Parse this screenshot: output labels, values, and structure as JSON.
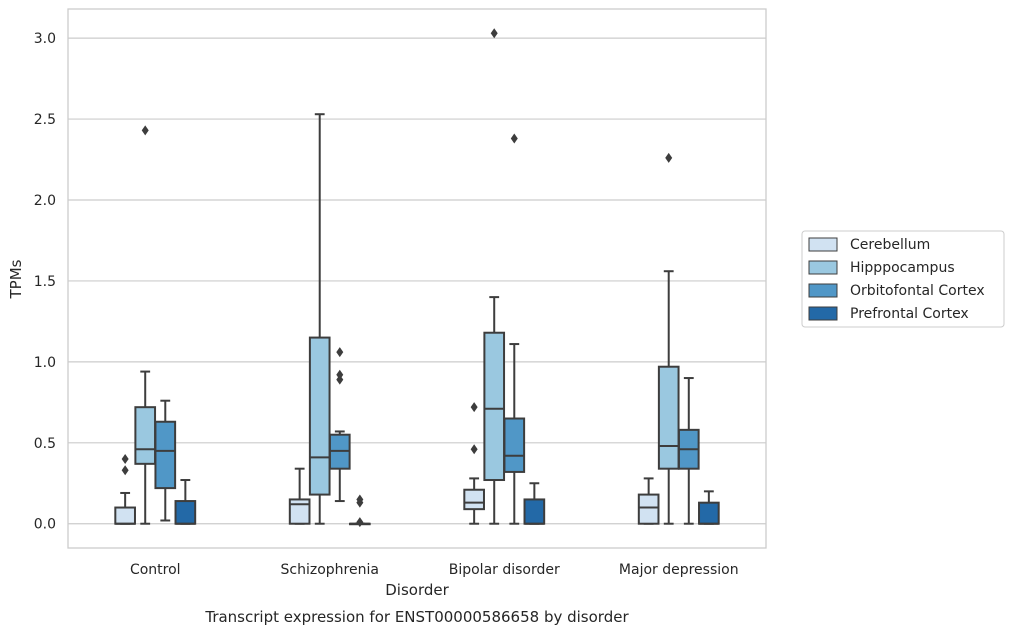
{
  "chart_data": {
    "type": "boxplot",
    "title": "Transcript expression for ENST00000586658 by disorder",
    "xlabel": "Disorder",
    "ylabel": "TPMs",
    "ylim": [
      -0.15,
      3.18
    ],
    "yticks": [
      "0.0",
      "0.5",
      "1.0",
      "1.5",
      "2.0",
      "2.5",
      "3.0"
    ],
    "grid": "horizontal",
    "legend_position": "right",
    "categories": [
      "Control",
      "Schizophrenia",
      "Bipolar disorder",
      "Major depression"
    ],
    "series": [
      {
        "name": "Cerebellum",
        "color": "#d1e2f2",
        "boxes": [
          {
            "whislo": 0.0,
            "q1": 0.0,
            "med": 0.0,
            "q3": 0.1,
            "whishi": 0.19,
            "fliers": [
              0.33,
              0.4
            ]
          },
          {
            "whislo": 0.0,
            "q1": 0.0,
            "med": 0.12,
            "q3": 0.15,
            "whishi": 0.34,
            "fliers": []
          },
          {
            "whislo": 0.0,
            "q1": 0.09,
            "med": 0.13,
            "q3": 0.21,
            "whishi": 0.28,
            "fliers": [
              0.46,
              0.72
            ]
          },
          {
            "whislo": 0.0,
            "q1": 0.0,
            "med": 0.1,
            "q3": 0.18,
            "whishi": 0.28,
            "fliers": []
          }
        ]
      },
      {
        "name": "Hipppocampus",
        "color": "#9ac8e0",
        "boxes": [
          {
            "whislo": 0.0,
            "q1": 0.37,
            "med": 0.46,
            "q3": 0.72,
            "whishi": 0.94,
            "fliers": [
              2.43
            ]
          },
          {
            "whislo": 0.0,
            "q1": 0.18,
            "med": 0.41,
            "q3": 1.15,
            "whishi": 2.53,
            "fliers": []
          },
          {
            "whislo": 0.0,
            "q1": 0.27,
            "med": 0.71,
            "q3": 1.18,
            "whishi": 1.4,
            "fliers": [
              3.03
            ]
          },
          {
            "whislo": 0.0,
            "q1": 0.34,
            "med": 0.48,
            "q3": 0.97,
            "whishi": 1.56,
            "fliers": [
              2.26
            ]
          }
        ]
      },
      {
        "name": "Orbitofontal Cortex",
        "color": "#5097c7",
        "boxes": [
          {
            "whislo": 0.02,
            "q1": 0.22,
            "med": 0.45,
            "q3": 0.63,
            "whishi": 0.76,
            "fliers": []
          },
          {
            "whislo": 0.14,
            "q1": 0.34,
            "med": 0.45,
            "q3": 0.55,
            "whishi": 0.57,
            "fliers": [
              0.89,
              0.92,
              1.06
            ]
          },
          {
            "whislo": 0.0,
            "q1": 0.32,
            "med": 0.42,
            "q3": 0.65,
            "whishi": 1.11,
            "fliers": [
              2.38
            ]
          },
          {
            "whislo": 0.0,
            "q1": 0.34,
            "med": 0.46,
            "q3": 0.58,
            "whishi": 0.9,
            "fliers": []
          }
        ]
      },
      {
        "name": "Prefrontal Cortex",
        "color": "#2369a7",
        "boxes": [
          {
            "whislo": 0.0,
            "q1": 0.0,
            "med": 0.0,
            "q3": 0.14,
            "whishi": 0.27,
            "fliers": []
          },
          {
            "whislo": 0.0,
            "q1": 0.0,
            "med": 0.0,
            "q3": 0.0,
            "whishi": 0.0,
            "fliers": [
              0.01,
              0.13,
              0.15
            ]
          },
          {
            "whislo": 0.0,
            "q1": 0.0,
            "med": 0.0,
            "q3": 0.15,
            "whishi": 0.25,
            "fliers": []
          },
          {
            "whislo": 0.0,
            "q1": 0.0,
            "med": 0.0,
            "q3": 0.13,
            "whishi": 0.2,
            "fliers": []
          }
        ]
      }
    ]
  }
}
